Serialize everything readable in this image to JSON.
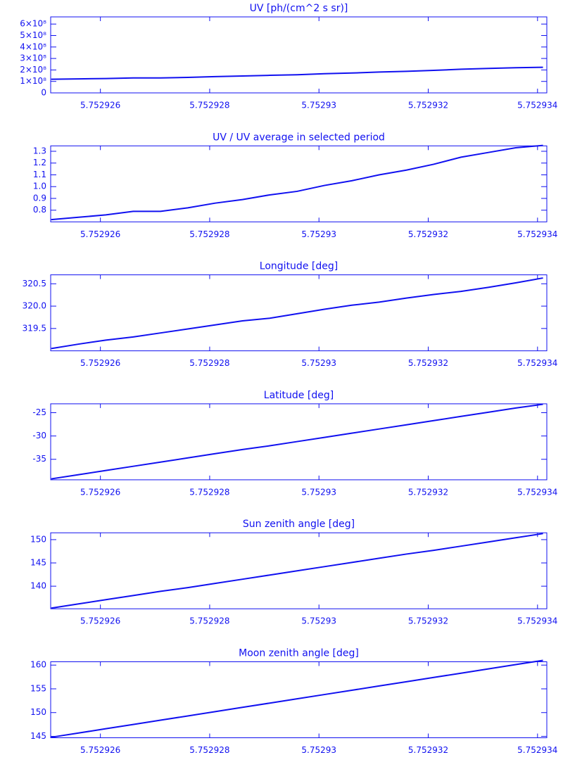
{
  "chart_data": [
    {
      "type": "line",
      "title": "UV [ph/(cm^2 s sr)]",
      "color": "#1010f0",
      "x": [
        5.7529251,
        5.7529256,
        5.7529261,
        5.7529266,
        5.7529271,
        5.7529276,
        5.7529281,
        5.7529286,
        5.7529291,
        5.7529296,
        5.7529301,
        5.7529306,
        5.7529311,
        5.7529316,
        5.7529321,
        5.7529326,
        5.7529331,
        5.7529336,
        5.7529341
      ],
      "values": [
        119000000,
        122000000,
        125000000,
        130000000,
        130000000,
        135000000,
        142000000,
        147000000,
        153000000,
        158000000,
        167000000,
        173000000,
        182000000,
        188000000,
        196000000,
        206000000,
        213000000,
        219000000,
        223000000
      ],
      "xlim": [
        5.75292509,
        5.75293417
      ],
      "xticks": [
        5.752926,
        5.752928,
        5.75293,
        5.752932,
        5.752934
      ],
      "ylim": [
        0,
        662500000
      ],
      "yticks": [
        0,
        {
          "value": 100000000,
          "label": "1×10⁸"
        },
        {
          "value": 200000000,
          "label": "2×10⁸"
        },
        {
          "value": 300000000,
          "label": "3×10⁸"
        },
        {
          "value": 400000000,
          "label": "4×10⁸"
        },
        {
          "value": 500000000,
          "label": "5×10⁸"
        },
        {
          "value": 600000000,
          "label": "6×10⁸"
        }
      ]
    },
    {
      "type": "line",
      "title": "UV / UV average in selected period",
      "color": "#1010f0",
      "x": [
        5.7529251,
        5.7529256,
        5.7529261,
        5.7529266,
        5.7529271,
        5.7529276,
        5.7529281,
        5.7529286,
        5.7529291,
        5.7529296,
        5.7529301,
        5.7529306,
        5.7529311,
        5.7529316,
        5.7529321,
        5.7529326,
        5.7529331,
        5.7529336,
        5.7529341
      ],
      "values": [
        0.72,
        0.74,
        0.76,
        0.79,
        0.79,
        0.82,
        0.86,
        0.89,
        0.93,
        0.96,
        1.01,
        1.05,
        1.1,
        1.14,
        1.19,
        1.25,
        1.29,
        1.33,
        1.35
      ],
      "xlim": [
        5.75292509,
        5.75293417
      ],
      "xticks": [
        5.752926,
        5.752928,
        5.75293,
        5.752932,
        5.752934
      ],
      "ylim": [
        0.701,
        1.346
      ],
      "yticks": [
        0.8,
        0.9,
        {
          "value": 1,
          "label": "1.0"
        },
        1.1,
        1.2,
        1.3
      ]
    },
    {
      "type": "line",
      "title": "Longitude [deg]",
      "color": "#1010f0",
      "x": [
        5.7529251,
        5.7529256,
        5.7529261,
        5.7529266,
        5.7529271,
        5.7529276,
        5.7529281,
        5.7529286,
        5.7529291,
        5.7529296,
        5.7529301,
        5.7529306,
        5.7529311,
        5.7529316,
        5.7529321,
        5.7529326,
        5.7529331,
        5.7529336,
        5.7529341
      ],
      "values": [
        319.05,
        319.15,
        319.24,
        319.31,
        319.4,
        319.49,
        319.58,
        319.67,
        319.73,
        319.83,
        319.93,
        320.02,
        320.09,
        320.18,
        320.26,
        320.33,
        320.42,
        320.52,
        320.63
      ],
      "xlim": [
        5.75292509,
        5.75293417
      ],
      "xticks": [
        5.752926,
        5.752928,
        5.75293,
        5.752932,
        5.752934
      ],
      "ylim": [
        319.0,
        320.7
      ],
      "yticks": [
        319.5,
        {
          "value": 320,
          "label": "320.0"
        },
        320.5
      ]
    },
    {
      "type": "line",
      "title": "Latitude [deg]",
      "color": "#1010f0",
      "x": [
        5.7529251,
        5.7529256,
        5.7529261,
        5.7529266,
        5.7529271,
        5.7529276,
        5.7529281,
        5.7529286,
        5.7529291,
        5.7529296,
        5.7529301,
        5.7529306,
        5.7529311,
        5.7529316,
        5.7529321,
        5.7529326,
        5.7529331,
        5.7529336,
        5.7529341
      ],
      "values": [
        -39.2,
        -38.3,
        -37.4,
        -36.5,
        -35.6,
        -34.7,
        -33.8,
        -32.9,
        -32.1,
        -31.2,
        -30.3,
        -29.4,
        -28.5,
        -27.6,
        -26.7,
        -25.8,
        -24.9,
        -24.0,
        -23.2
      ],
      "xlim": [
        5.75292509,
        5.75293417
      ],
      "xticks": [
        5.752926,
        5.752928,
        5.75293,
        5.752932,
        5.752934
      ],
      "ylim": [
        -39.4,
        -23.1
      ],
      "yticks": [
        -35,
        -30,
        -25
      ]
    },
    {
      "type": "line",
      "title": "Sun zenith angle [deg]",
      "color": "#1010f0",
      "x": [
        5.7529251,
        5.7529256,
        5.7529261,
        5.7529266,
        5.7529271,
        5.7529276,
        5.7529281,
        5.7529286,
        5.7529291,
        5.7529296,
        5.7529301,
        5.7529306,
        5.7529311,
        5.7529316,
        5.7529321,
        5.7529326,
        5.7529331,
        5.7529336,
        5.7529341
      ],
      "values": [
        135.3,
        136.2,
        137.1,
        138.0,
        138.9,
        139.7,
        140.6,
        141.5,
        142.4,
        143.3,
        144.2,
        145.1,
        146.0,
        146.9,
        147.7,
        148.6,
        149.5,
        150.4,
        151.3
      ],
      "xlim": [
        5.75292509,
        5.75293417
      ],
      "xticks": [
        5.752926,
        5.752928,
        5.75293,
        5.752932,
        5.752934
      ],
      "ylim": [
        135.15,
        151.47
      ],
      "yticks": [
        140,
        145,
        150
      ]
    },
    {
      "type": "line",
      "title": "Moon zenith angle [deg]",
      "color": "#1010f0",
      "x": [
        5.7529251,
        5.7529256,
        5.7529261,
        5.7529266,
        5.7529271,
        5.7529276,
        5.7529281,
        5.7529286,
        5.7529291,
        5.7529296,
        5.7529301,
        5.7529306,
        5.7529311,
        5.7529316,
        5.7529321,
        5.7529326,
        5.7529331,
        5.7529336,
        5.7529341
      ],
      "values": [
        144.8,
        145.7,
        146.6,
        147.5,
        148.4,
        149.3,
        150.2,
        151.1,
        152.0,
        152.9,
        153.8,
        154.7,
        155.6,
        156.5,
        157.4,
        158.3,
        159.2,
        160.1,
        161.0
      ],
      "xlim": [
        5.75292509,
        5.75293417
      ],
      "xticks": [
        5.752926,
        5.752928,
        5.75293,
        5.752932,
        5.752934
      ],
      "ylim": [
        144.7,
        160.7
      ],
      "yticks": [
        145,
        150,
        155,
        160
      ]
    }
  ]
}
